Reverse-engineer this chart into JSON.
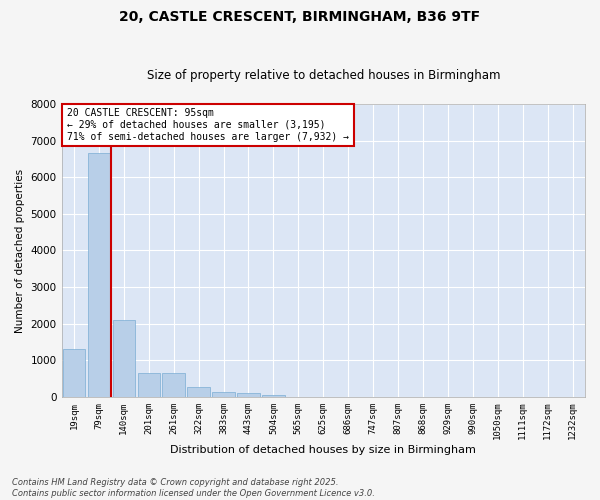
{
  "title_line1": "20, CASTLE CRESCENT, BIRMINGHAM, B36 9TF",
  "title_line2": "Size of property relative to detached houses in Birmingham",
  "xlabel": "Distribution of detached houses by size in Birmingham",
  "ylabel": "Number of detached properties",
  "footnote": "Contains HM Land Registry data © Crown copyright and database right 2025.\nContains public sector information licensed under the Open Government Licence v3.0.",
  "bar_labels": [
    "19sqm",
    "79sqm",
    "140sqm",
    "201sqm",
    "261sqm",
    "322sqm",
    "383sqm",
    "443sqm",
    "504sqm",
    "565sqm",
    "625sqm",
    "686sqm",
    "747sqm",
    "807sqm",
    "868sqm",
    "929sqm",
    "990sqm",
    "1050sqm",
    "1111sqm",
    "1172sqm",
    "1232sqm"
  ],
  "bar_values": [
    1300,
    6650,
    2100,
    650,
    650,
    280,
    130,
    100,
    60,
    0,
    0,
    0,
    0,
    0,
    0,
    0,
    0,
    0,
    0,
    0,
    0
  ],
  "bar_color": "#b8cfe8",
  "bar_edgecolor": "#7aadd4",
  "bg_color": "#dce6f5",
  "grid_color": "#ffffff",
  "fig_bg_color": "#f5f5f5",
  "vline_x": 1.5,
  "vline_color": "#cc0000",
  "annotation_text": "20 CASTLE CRESCENT: 95sqm\n← 29% of detached houses are smaller (3,195)\n71% of semi-detached houses are larger (7,932) →",
  "annotation_box_color": "#cc0000",
  "ylim": [
    0,
    8000
  ],
  "yticks": [
    0,
    1000,
    2000,
    3000,
    4000,
    5000,
    6000,
    7000,
    8000
  ]
}
